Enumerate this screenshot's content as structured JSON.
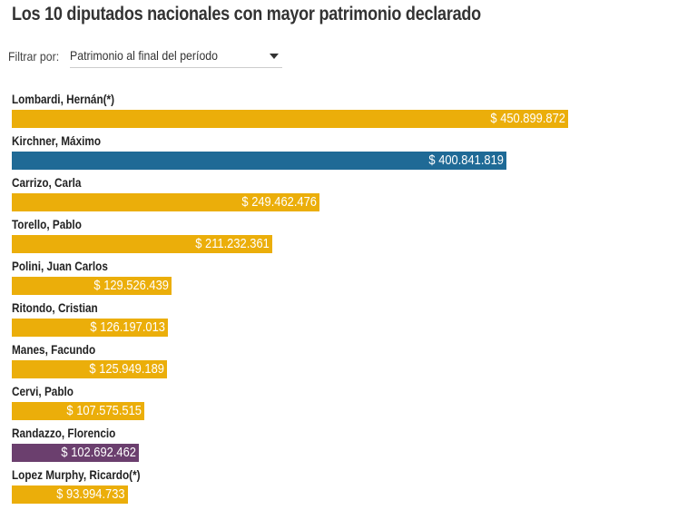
{
  "title": "Los 10 diputados nacionales con mayor patrimonio declarado",
  "filter": {
    "label": "Filtrar por:",
    "selected": "Patrimonio al final del período"
  },
  "colors": {
    "default": "#EBAE0A",
    "highlight_blue": "#1F6A96",
    "highlight_purple": "#6B3F6E"
  },
  "chart_data": {
    "type": "bar",
    "orientation": "horizontal",
    "title": "Los 10 diputados nacionales con mayor patrimonio declarado",
    "xlabel": "",
    "ylabel": "",
    "xlim": [
      0,
      450899872
    ],
    "grid": false,
    "categories": [
      "Lombardi, Hernán(*)",
      "Kirchner, Máximo",
      "Carrizo, Carla",
      "Torello, Pablo",
      "Polini, Juan Carlos",
      "Ritondo, Cristian",
      "Manes, Facundo",
      "Cervi, Pablo",
      "Randazzo, Florencio",
      "Lopez Murphy, Ricardo(*)"
    ],
    "values": [
      450899872,
      400841819,
      249462476,
      211232361,
      129526439,
      126197013,
      125949189,
      107575515,
      102692462,
      93994733
    ],
    "labels": [
      "$ 450.899.872",
      "$ 400.841.819",
      "$ 249.462.476",
      "$ 211.232.361",
      "$ 129.526.439",
      "$ 126.197.013",
      "$ 125.949.189",
      "$ 107.575.515",
      "$ 102.692.462",
      "$ 93.994.733"
    ],
    "bar_colors": [
      "#EBAE0A",
      "#1F6A96",
      "#EBAE0A",
      "#EBAE0A",
      "#EBAE0A",
      "#EBAE0A",
      "#EBAE0A",
      "#EBAE0A",
      "#6B3F6E",
      "#EBAE0A"
    ]
  }
}
